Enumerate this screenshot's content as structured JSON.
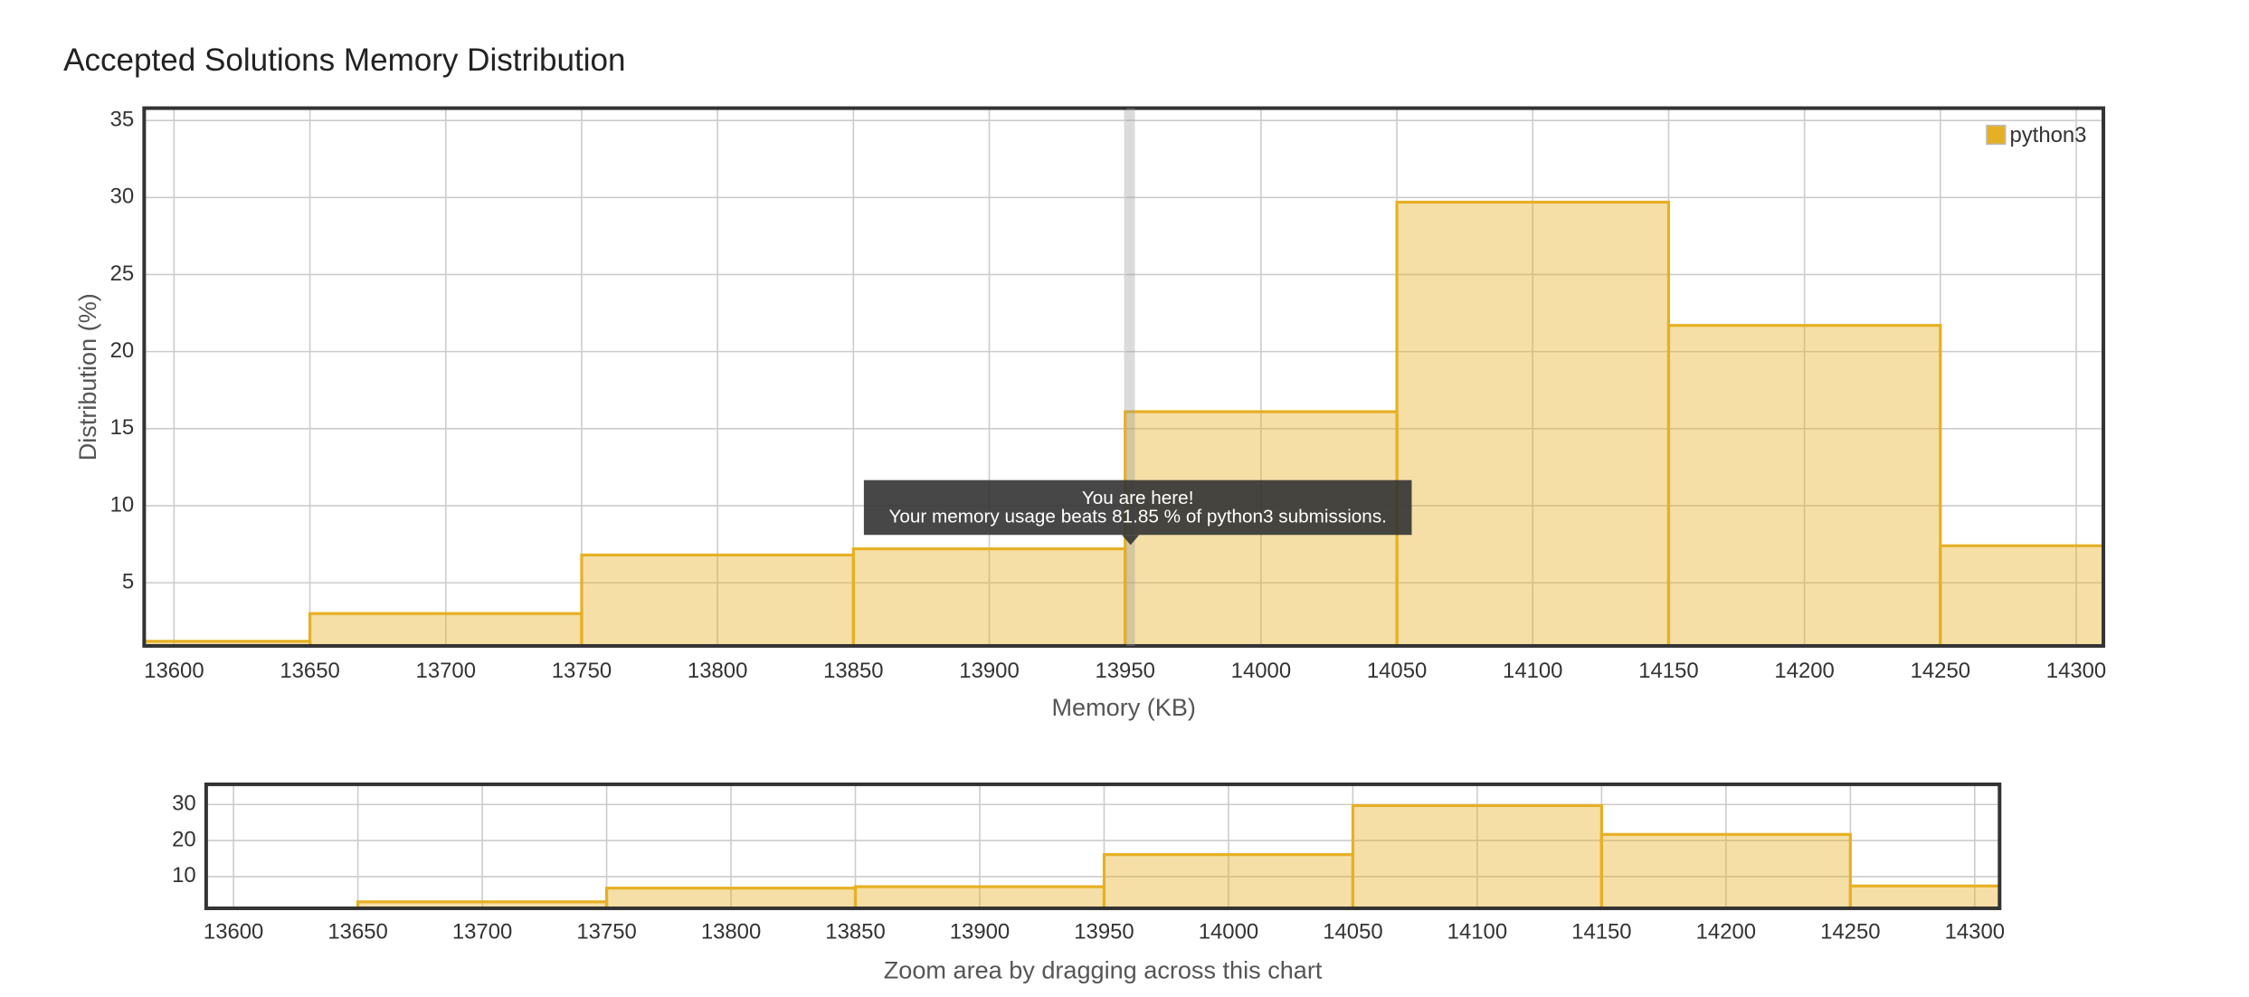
{
  "title": "Accepted Solutions Memory Distribution",
  "chart_data": [
    {
      "type": "histogram",
      "xlabel": "Memory (KB)",
      "ylabel": "Distribution (%)",
      "bins": [
        13550,
        13650,
        13750,
        13850,
        13950,
        14050,
        14150,
        14250,
        14350
      ],
      "series": [
        {
          "name": "python3",
          "color": "#e6b024",
          "values": [
            1.2,
            3.0,
            6.8,
            7.2,
            16.1,
            29.7,
            21.7,
            7.4
          ]
        }
      ],
      "xlim": [
        13589,
        14310
      ],
      "ylim": [
        0.9,
        35.8
      ],
      "xticks": [
        13600,
        13650,
        13700,
        13750,
        13800,
        13850,
        13900,
        13950,
        14000,
        14050,
        14100,
        14150,
        14200,
        14250,
        14300
      ],
      "yticks": [
        5,
        10,
        15,
        20,
        25,
        30,
        35
      ],
      "grid": true,
      "legend": "top-right",
      "annotation": {
        "x": 13952,
        "lines": [
          "You are here!",
          "Your memory usage beats 81.85 % of python3 submissions."
        ]
      }
    },
    {
      "type": "histogram",
      "xlabel": "Zoom area by dragging across this chart",
      "bins": [
        13550,
        13650,
        13750,
        13850,
        13950,
        14050,
        14150,
        14250,
        14350
      ],
      "values": [
        1.2,
        3.0,
        6.8,
        7.2,
        16.1,
        29.7,
        21.7,
        7.4
      ],
      "color": "#e6b024",
      "xlim": [
        13589,
        14310
      ],
      "ylim": [
        1.2,
        35.6
      ],
      "xticks": [
        13600,
        13650,
        13700,
        13750,
        13800,
        13850,
        13900,
        13950,
        14000,
        14050,
        14100,
        14150,
        14200,
        14250,
        14300
      ],
      "yticks": [
        10,
        20,
        30
      ],
      "grid": true
    }
  ]
}
